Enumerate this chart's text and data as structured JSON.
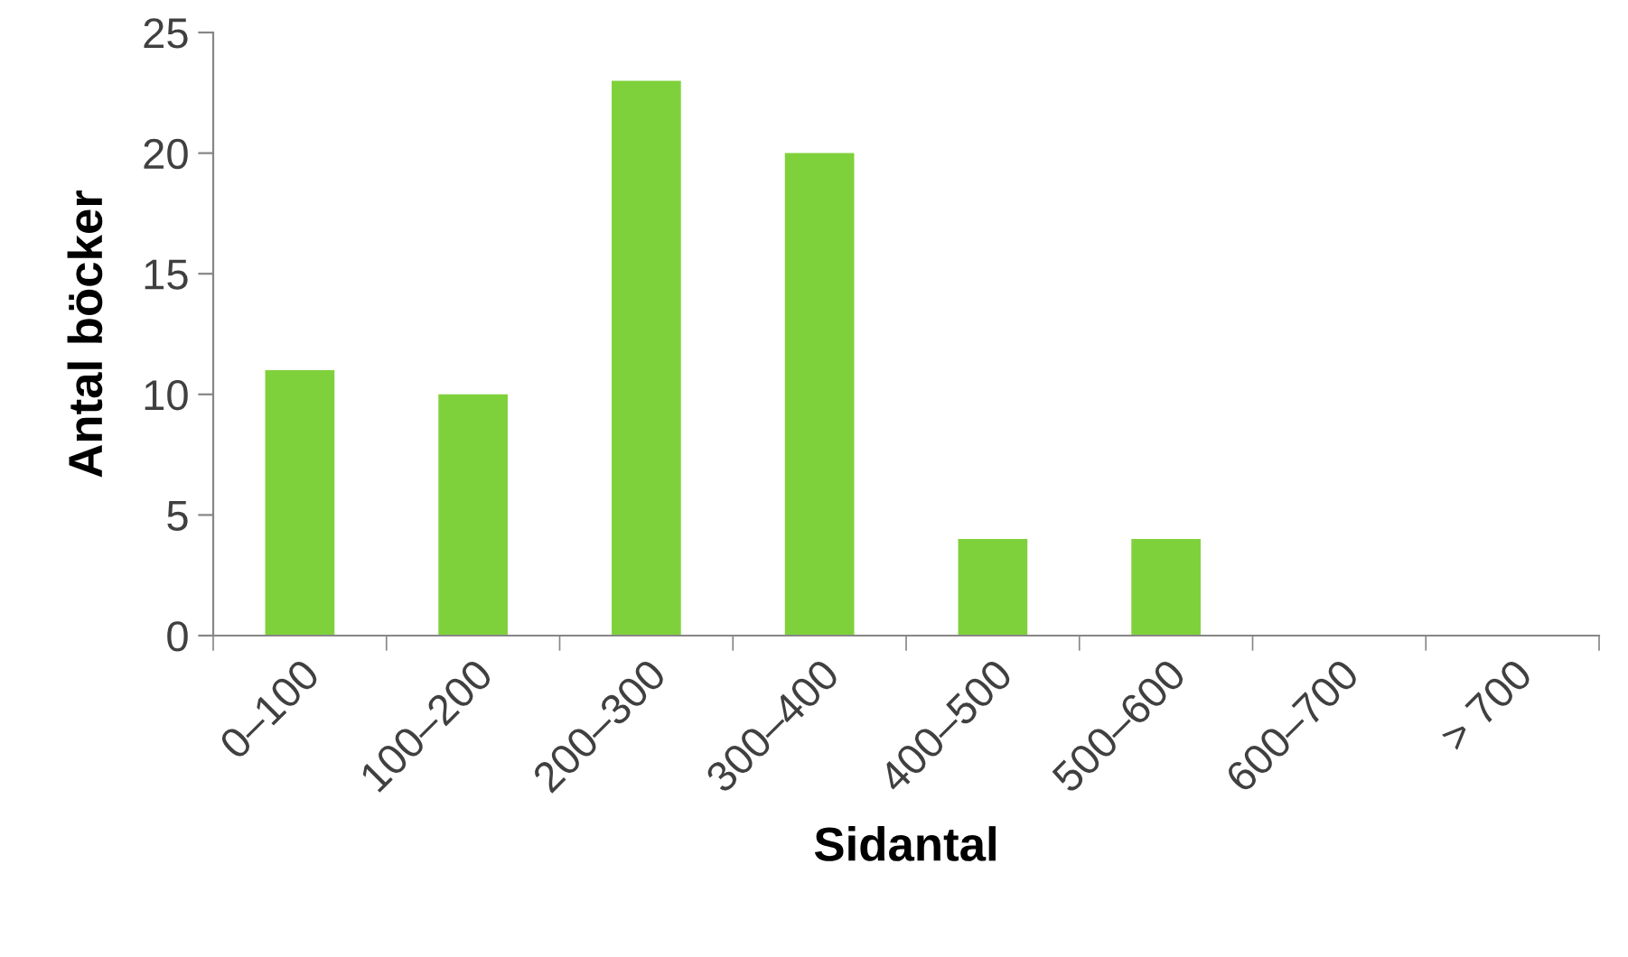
{
  "chart_data": {
    "type": "bar",
    "xlabel": "Sidantal",
    "ylabel": "Antal böcker",
    "categories": [
      "0–100",
      "100–200",
      "200–300",
      "300–400",
      "400–500",
      "500–600",
      "600–700",
      "> 700"
    ],
    "values": [
      11,
      10,
      23,
      20,
      4,
      4,
      0,
      0
    ],
    "color": "#7fd13b",
    "ylim": [
      0,
      25
    ],
    "yticks": [
      0,
      5,
      10,
      15,
      20,
      25
    ],
    "grid": false,
    "legend": false
  }
}
